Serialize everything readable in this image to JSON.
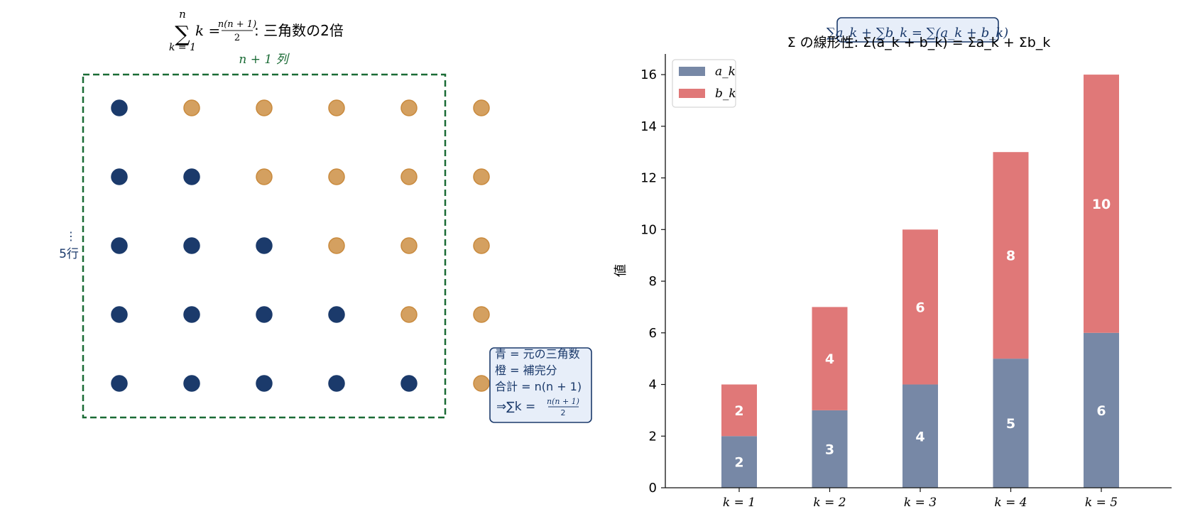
{
  "left_panel": {
    "title": {
      "sum_symbol": "∑",
      "upper": "n",
      "lower": "k = 1",
      "term": "k =",
      "frac_num": "n(n + 1)",
      "frac_den": "2",
      "suffix": ": 三角数の2倍"
    },
    "columns_label": "n + 1 列",
    "rows_label": "5行",
    "rows_dots": "⋮",
    "grid": {
      "rows": 5,
      "cols": 6,
      "blue_per_row": [
        1,
        2,
        3,
        4,
        5
      ]
    },
    "legend_box": {
      "line1": "青 = 元の三角数",
      "line2": "橙 = 補完分",
      "line3": "合計 = n(n + 1)",
      "line4_prefix": "⇒∑k =",
      "line4_num": "n(n + 1)",
      "line4_den": "2"
    },
    "colors": {
      "blue": "#1b3a6b",
      "orange": "#d4a060",
      "orange_edge": "#c98a3d",
      "frame": "#1a6b35"
    }
  },
  "right_panel": {
    "overlay_box": "∑a_k + ∑b_k = ∑(a_k + b_k)",
    "colors": {
      "a": "#7788a6",
      "b": "#e07878",
      "box_border": "#1b3a6b",
      "box_fill": "#e7eef9"
    }
  },
  "chart_data": {
    "type": "bar",
    "stacked": true,
    "title": "Σ の線形性: Σ(a_k + b_k) = Σa_k + Σb_k",
    "ylabel": "値",
    "xlabel": "",
    "categories": [
      "k = 1",
      "k = 2",
      "k = 3",
      "k = 4",
      "k = 5"
    ],
    "series": [
      {
        "name": "a_k",
        "values": [
          2,
          3,
          4,
          5,
          6
        ],
        "color": "#7788a6"
      },
      {
        "name": "b_k",
        "values": [
          2,
          4,
          6,
          8,
          10
        ],
        "color": "#e07878"
      }
    ],
    "ylim": [
      0,
      16.8
    ],
    "yticks": [
      0,
      2,
      4,
      6,
      8,
      10,
      12,
      14,
      16
    ],
    "legend": "top-left",
    "grid": false
  }
}
